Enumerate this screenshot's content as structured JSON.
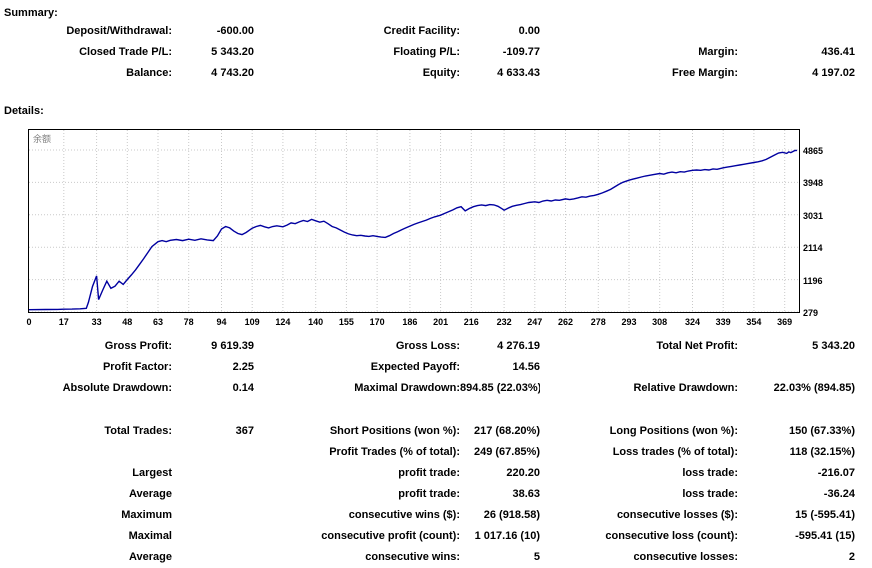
{
  "summary": {
    "heading": "Summary:",
    "rows": [
      [
        "Deposit/Withdrawal:",
        "-600.00",
        "Credit Facility:",
        "0.00",
        "",
        ""
      ],
      [
        "Closed Trade P/L:",
        "5 343.20",
        "Floating P/L:",
        "-109.77",
        "Margin:",
        "436.41"
      ],
      [
        "Balance:",
        "4 743.20",
        "Equity:",
        "4 633.43",
        "Free Margin:",
        "4 197.02"
      ]
    ]
  },
  "details": {
    "heading": "Details:",
    "block_a": [
      [
        "Gross Profit:",
        "9 619.39",
        "Gross Loss:",
        "4 276.19",
        "Total Net Profit:",
        "5 343.20"
      ],
      [
        "Profit Factor:",
        "2.25",
        "Expected Payoff:",
        "14.56",
        "",
        ""
      ],
      [
        "Absolute Drawdown:",
        "0.14",
        "Maximal Drawdown:",
        "894.85 (22.03%)",
        "Relative Drawdown:",
        "22.03% (894.85)"
      ]
    ],
    "block_b": [
      [
        "Total Trades:",
        "367",
        "Short Positions (won %):",
        "217 (68.20%)",
        "Long Positions (won %):",
        "150 (67.33%)"
      ],
      [
        "",
        "",
        "Profit Trades (% of total):",
        "249 (67.85%)",
        "Loss trades (% of total):",
        "118 (32.15%)"
      ],
      [
        "Largest",
        "",
        "profit trade:",
        "220.20",
        "loss trade:",
        "-216.07"
      ],
      [
        "Average",
        "",
        "profit trade:",
        "38.63",
        "loss trade:",
        "-36.24"
      ],
      [
        "Maximum",
        "",
        "consecutive wins ($):",
        "26 (918.58)",
        "consecutive losses ($):",
        "15 (-595.41)"
      ],
      [
        "Maximal",
        "",
        "consecutive profit (count):",
        "1 017.16 (10)",
        "consecutive loss (count):",
        "-595.41 (15)"
      ],
      [
        "Average",
        "",
        "consecutive wins:",
        "5",
        "consecutive losses:",
        "2"
      ]
    ]
  },
  "chart_data": {
    "type": "line",
    "series_label": "余额",
    "line_color": "#0000a0",
    "grid_color": "#c9c9c9",
    "legend_position": "top-left",
    "grid": true,
    "x_ticks": [
      0,
      17,
      33,
      48,
      63,
      78,
      94,
      109,
      124,
      140,
      155,
      170,
      186,
      201,
      216,
      232,
      247,
      262,
      278,
      293,
      308,
      324,
      339,
      354,
      369
    ],
    "y_ticks": [
      279,
      1196,
      2114,
      3031,
      3948,
      4865
    ],
    "x_range": [
      0,
      376
    ],
    "y_range": [
      279,
      4865
    ],
    "points": [
      [
        0,
        345
      ],
      [
        8,
        350
      ],
      [
        14,
        354
      ],
      [
        17,
        357
      ],
      [
        21,
        362
      ],
      [
        25,
        370
      ],
      [
        28,
        385
      ],
      [
        29,
        550
      ],
      [
        31,
        1000
      ],
      [
        33,
        1300
      ],
      [
        34,
        630
      ],
      [
        36,
        900
      ],
      [
        38,
        1150
      ],
      [
        40,
        950
      ],
      [
        42,
        1010
      ],
      [
        44,
        1150
      ],
      [
        46,
        1060
      ],
      [
        48,
        1200
      ],
      [
        50,
        1330
      ],
      [
        52,
        1470
      ],
      [
        54,
        1630
      ],
      [
        56,
        1790
      ],
      [
        58,
        1960
      ],
      [
        60,
        2130
      ],
      [
        63,
        2270
      ],
      [
        65,
        2300
      ],
      [
        67,
        2270
      ],
      [
        69,
        2310
      ],
      [
        72,
        2330
      ],
      [
        75,
        2300
      ],
      [
        78,
        2340
      ],
      [
        81,
        2310
      ],
      [
        84,
        2350
      ],
      [
        87,
        2320
      ],
      [
        90,
        2300
      ],
      [
        92,
        2430
      ],
      [
        94,
        2630
      ],
      [
        96,
        2700
      ],
      [
        98,
        2660
      ],
      [
        100,
        2570
      ],
      [
        102,
        2500
      ],
      [
        104,
        2470
      ],
      [
        106,
        2530
      ],
      [
        109,
        2650
      ],
      [
        111,
        2700
      ],
      [
        113,
        2730
      ],
      [
        115,
        2690
      ],
      [
        117,
        2660
      ],
      [
        119,
        2700
      ],
      [
        121,
        2720
      ],
      [
        124,
        2690
      ],
      [
        126,
        2740
      ],
      [
        128,
        2800
      ],
      [
        130,
        2780
      ],
      [
        132,
        2830
      ],
      [
        134,
        2870
      ],
      [
        136,
        2840
      ],
      [
        138,
        2900
      ],
      [
        140,
        2860
      ],
      [
        142,
        2820
      ],
      [
        144,
        2850
      ],
      [
        146,
        2780
      ],
      [
        148,
        2700
      ],
      [
        150,
        2660
      ],
      [
        152,
        2600
      ],
      [
        154,
        2540
      ],
      [
        156,
        2490
      ],
      [
        158,
        2460
      ],
      [
        160,
        2440
      ],
      [
        162,
        2450
      ],
      [
        164,
        2430
      ],
      [
        166,
        2420
      ],
      [
        168,
        2440
      ],
      [
        170,
        2420
      ],
      [
        172,
        2400
      ],
      [
        174,
        2390
      ],
      [
        176,
        2440
      ],
      [
        178,
        2500
      ],
      [
        180,
        2550
      ],
      [
        182,
        2610
      ],
      [
        184,
        2660
      ],
      [
        186,
        2710
      ],
      [
        188,
        2760
      ],
      [
        190,
        2800
      ],
      [
        192,
        2840
      ],
      [
        194,
        2880
      ],
      [
        196,
        2930
      ],
      [
        198,
        2970
      ],
      [
        201,
        3020
      ],
      [
        203,
        3070
      ],
      [
        205,
        3120
      ],
      [
        207,
        3170
      ],
      [
        209,
        3230
      ],
      [
        211,
        3260
      ],
      [
        213,
        3140
      ],
      [
        215,
        3210
      ],
      [
        217,
        3260
      ],
      [
        219,
        3290
      ],
      [
        221,
        3310
      ],
      [
        223,
        3290
      ],
      [
        225,
        3320
      ],
      [
        227,
        3310
      ],
      [
        229,
        3270
      ],
      [
        231,
        3200
      ],
      [
        232,
        3160
      ],
      [
        234,
        3220
      ],
      [
        236,
        3270
      ],
      [
        238,
        3300
      ],
      [
        240,
        3320
      ],
      [
        242,
        3350
      ],
      [
        244,
        3380
      ],
      [
        247,
        3400
      ],
      [
        249,
        3380
      ],
      [
        251,
        3420
      ],
      [
        253,
        3440
      ],
      [
        255,
        3420
      ],
      [
        257,
        3450
      ],
      [
        259,
        3440
      ],
      [
        262,
        3480
      ],
      [
        264,
        3460
      ],
      [
        266,
        3480
      ],
      [
        268,
        3510
      ],
      [
        270,
        3540
      ],
      [
        272,
        3530
      ],
      [
        274,
        3560
      ],
      [
        276,
        3580
      ],
      [
        278,
        3610
      ],
      [
        280,
        3650
      ],
      [
        282,
        3700
      ],
      [
        284,
        3750
      ],
      [
        286,
        3820
      ],
      [
        288,
        3890
      ],
      [
        290,
        3950
      ],
      [
        293,
        4010
      ],
      [
        295,
        4040
      ],
      [
        297,
        4070
      ],
      [
        299,
        4100
      ],
      [
        301,
        4130
      ],
      [
        303,
        4150
      ],
      [
        305,
        4170
      ],
      [
        308,
        4200
      ],
      [
        310,
        4180
      ],
      [
        312,
        4220
      ],
      [
        314,
        4240
      ],
      [
        316,
        4220
      ],
      [
        318,
        4250
      ],
      [
        320,
        4240
      ],
      [
        322,
        4270
      ],
      [
        324,
        4290
      ],
      [
        326,
        4300
      ],
      [
        328,
        4290
      ],
      [
        330,
        4310
      ],
      [
        332,
        4300
      ],
      [
        334,
        4330
      ],
      [
        336,
        4320
      ],
      [
        339,
        4360
      ],
      [
        341,
        4380
      ],
      [
        343,
        4400
      ],
      [
        345,
        4420
      ],
      [
        347,
        4440
      ],
      [
        349,
        4460
      ],
      [
        351,
        4480
      ],
      [
        354,
        4510
      ],
      [
        356,
        4530
      ],
      [
        358,
        4560
      ],
      [
        360,
        4600
      ],
      [
        362,
        4660
      ],
      [
        364,
        4720
      ],
      [
        366,
        4780
      ],
      [
        368,
        4800
      ],
      [
        370,
        4770
      ],
      [
        371,
        4810
      ],
      [
        372,
        4790
      ],
      [
        374,
        4850
      ],
      [
        375,
        4855
      ]
    ]
  }
}
